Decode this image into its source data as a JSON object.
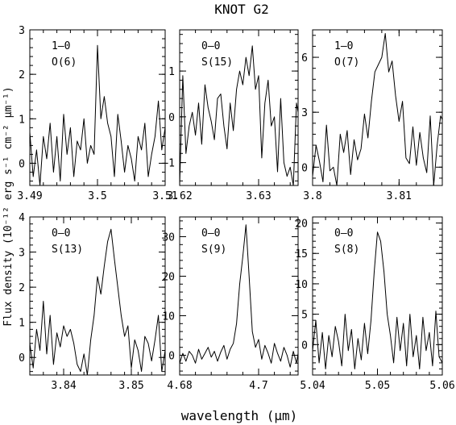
{
  "chart_data": {
    "type": "line",
    "title": "KNOT G2",
    "xlabel": "wavelength (μm)",
    "ylabel": "Flux density (10⁻¹² erg s⁻¹ cm⁻² μm⁻¹)",
    "panels": [
      {
        "label_line1": "1–0",
        "label_line2": "O(6)",
        "xlim": [
          3.49,
          3.51
        ],
        "ylim": [
          -0.5,
          3
        ],
        "xticks": [
          3.49,
          3.5,
          3.51
        ],
        "xtick_labels": [
          "3.49",
          "3.5",
          "3.51"
        ],
        "yticks": [
          0,
          1,
          2,
          3
        ],
        "ytick_labels": [
          "0",
          "1",
          "2",
          "3"
        ],
        "x": [
          3.49,
          3.4905,
          3.491,
          3.4915,
          3.492,
          3.4925,
          3.493,
          3.4935,
          3.494,
          3.4945,
          3.495,
          3.4955,
          3.496,
          3.4965,
          3.497,
          3.4975,
          3.498,
          3.4985,
          3.499,
          3.4995,
          3.5,
          3.5005,
          3.501,
          3.5015,
          3.502,
          3.5025,
          3.503,
          3.5035,
          3.504,
          3.5045,
          3.505,
          3.5055,
          3.506,
          3.5065,
          3.507,
          3.5075,
          3.508,
          3.5085,
          3.509,
          3.5095,
          3.51
        ],
        "y": [
          0.7,
          -0.3,
          0.3,
          -0.5,
          0.6,
          0.1,
          0.9,
          -0.2,
          0.6,
          -0.4,
          1.1,
          0.2,
          0.8,
          -0.3,
          0.5,
          0.3,
          1.0,
          0.0,
          0.4,
          0.2,
          2.65,
          1.0,
          1.5,
          0.9,
          0.6,
          -0.3,
          1.1,
          0.5,
          -0.2,
          0.4,
          0.1,
          -0.4,
          0.6,
          0.3,
          0.9,
          -0.3,
          0.2,
          0.6,
          1.4,
          0.3,
          0.8
        ]
      },
      {
        "label_line1": "0–0",
        "label_line2": "S(15)",
        "xlim": [
          3.62,
          3.635
        ],
        "ylim": [
          -1.5,
          1.9
        ],
        "xticks": [
          3.62,
          3.63
        ],
        "xtick_labels": [
          "3.62",
          "3.63"
        ],
        "yticks": [
          -1,
          0,
          1
        ],
        "ytick_labels": [
          "−1",
          "0",
          "1"
        ],
        "x": [
          3.62,
          3.6204,
          3.6208,
          3.6212,
          3.6216,
          3.622,
          3.6224,
          3.6228,
          3.6232,
          3.6236,
          3.624,
          3.6244,
          3.6248,
          3.6252,
          3.6256,
          3.626,
          3.6264,
          3.6268,
          3.6272,
          3.6276,
          3.628,
          3.6284,
          3.6288,
          3.6292,
          3.6296,
          3.63,
          3.6304,
          3.6308,
          3.6312,
          3.6316,
          3.632,
          3.6324,
          3.6328,
          3.6332,
          3.6336,
          3.634,
          3.6344,
          3.6348,
          3.635
        ],
        "y": [
          -1.5,
          0.9,
          -0.8,
          -0.2,
          0.1,
          -0.4,
          0.3,
          -0.6,
          0.7,
          0.2,
          -0.1,
          -0.5,
          0.4,
          0.5,
          -0.2,
          -0.7,
          0.3,
          -0.3,
          0.6,
          1.0,
          0.7,
          1.3,
          0.9,
          1.55,
          0.6,
          0.9,
          -0.9,
          0.3,
          0.8,
          -0.2,
          0.0,
          -1.2,
          0.4,
          -1.0,
          -1.3,
          -1.1,
          -1.5,
          0.3,
          0.1
        ]
      },
      {
        "label_line1": "1–0",
        "label_line2": "O(7)",
        "xlim": [
          3.8,
          3.815
        ],
        "ylim": [
          -1,
          7.5
        ],
        "xticks": [
          3.8,
          3.81
        ],
        "xtick_labels": [
          "3.8",
          "3.81"
        ],
        "yticks": [
          0,
          3,
          6
        ],
        "ytick_labels": [
          "0",
          "3",
          "6"
        ],
        "x": [
          3.8,
          3.8004,
          3.8008,
          3.8012,
          3.8016,
          3.802,
          3.8024,
          3.8028,
          3.8032,
          3.8036,
          3.804,
          3.8044,
          3.8048,
          3.8052,
          3.8056,
          3.806,
          3.8064,
          3.8068,
          3.8072,
          3.8076,
          3.808,
          3.8084,
          3.8088,
          3.8092,
          3.8096,
          3.81,
          3.8104,
          3.8108,
          3.8112,
          3.8116,
          3.812,
          3.8124,
          3.8128,
          3.8132,
          3.8136,
          3.814,
          3.8144,
          3.8148,
          3.815
        ],
        "y": [
          -0.5,
          1.2,
          0.3,
          -0.8,
          2.3,
          -0.2,
          0.0,
          -1.0,
          1.8,
          0.8,
          2.0,
          -0.4,
          1.5,
          0.4,
          1.0,
          2.9,
          1.6,
          3.6,
          5.2,
          5.6,
          6.0,
          7.3,
          5.2,
          5.8,
          3.9,
          2.5,
          3.6,
          0.5,
          0.2,
          2.2,
          0.1,
          1.9,
          0.5,
          -0.3,
          2.8,
          -1.0,
          1.2,
          2.8,
          2.6
        ]
      },
      {
        "label_line1": "0–0",
        "label_line2": "S(13)",
        "xlim": [
          3.835,
          3.855
        ],
        "ylim": [
          -0.5,
          4
        ],
        "xticks": [
          3.84,
          3.85
        ],
        "xtick_labels": [
          "3.84",
          "3.85"
        ],
        "yticks": [
          0,
          1,
          2,
          3,
          4
        ],
        "ytick_labels": [
          "0",
          "1",
          "2",
          "3",
          "4"
        ],
        "x": [
          3.835,
          3.8355,
          3.836,
          3.8365,
          3.837,
          3.8375,
          3.838,
          3.8385,
          3.839,
          3.8395,
          3.84,
          3.8405,
          3.841,
          3.8415,
          3.842,
          3.8425,
          3.843,
          3.8435,
          3.844,
          3.8445,
          3.845,
          3.8455,
          3.846,
          3.8465,
          3.847,
          3.8475,
          3.848,
          3.8485,
          3.849,
          3.8495,
          3.85,
          3.8505,
          3.851,
          3.8515,
          3.852,
          3.8525,
          3.853,
          3.8535,
          3.854,
          3.8545,
          3.855
        ],
        "y": [
          0.4,
          -0.3,
          0.8,
          0.2,
          1.6,
          0.1,
          1.2,
          -0.2,
          0.7,
          0.3,
          0.9,
          0.6,
          0.8,
          0.4,
          -0.2,
          -0.4,
          0.1,
          -0.5,
          0.5,
          1.2,
          2.3,
          1.8,
          2.6,
          3.3,
          3.65,
          2.8,
          2.0,
          1.2,
          0.6,
          0.9,
          -0.3,
          0.5,
          0.2,
          -0.4,
          0.6,
          0.4,
          -0.1,
          0.5,
          1.2,
          -0.4,
          0.2
        ]
      },
      {
        "label_line1": "0–0",
        "label_line2": "S(9)",
        "xlim": [
          4.68,
          4.71
        ],
        "ylim": [
          -5,
          35
        ],
        "xticks": [
          4.68,
          4.7
        ],
        "xtick_labels": [
          "4.68",
          "4.7"
        ],
        "yticks": [
          0,
          10,
          20,
          30
        ],
        "ytick_labels": [
          "0",
          "10",
          "20",
          "30"
        ],
        "x": [
          4.68,
          4.6808,
          4.6816,
          4.6824,
          4.6832,
          4.684,
          4.6848,
          4.6856,
          4.6864,
          4.6872,
          4.688,
          4.6888,
          4.6896,
          4.6904,
          4.6912,
          4.692,
          4.6928,
          4.6936,
          4.6944,
          4.6952,
          4.696,
          4.6968,
          4.6976,
          4.6984,
          4.6992,
          4.7,
          4.7008,
          4.7016,
          4.7024,
          4.7032,
          4.704,
          4.7048,
          4.7056,
          4.7064,
          4.7072,
          4.708,
          4.7088,
          4.7096,
          4.71
        ],
        "y": [
          -2.0,
          0.5,
          -1.5,
          1.0,
          0.0,
          -2.0,
          1.5,
          -1.0,
          0.5,
          2.0,
          -0.5,
          1.0,
          -1.5,
          0.8,
          2.5,
          -1.0,
          1.5,
          3.0,
          8.0,
          18.0,
          25.0,
          33.0,
          20.0,
          6.0,
          2.0,
          4.0,
          -1.0,
          2.5,
          0.5,
          -2.0,
          3.0,
          0.5,
          -1.5,
          2.0,
          0.0,
          -3.0,
          1.0,
          -2.0,
          0.5
        ]
      },
      {
        "label_line1": "0–0",
        "label_line2": "S(8)",
        "xlim": [
          5.04,
          5.06
        ],
        "ylim": [
          -5,
          21
        ],
        "xticks": [
          5.04,
          5.05,
          5.06
        ],
        "xtick_labels": [
          "5.04",
          "5.05",
          "5.06"
        ],
        "yticks": [
          0,
          5,
          10,
          15,
          20
        ],
        "ytick_labels": [
          "0",
          "5",
          "10",
          "15",
          "20"
        ],
        "x": [
          5.04,
          5.0405,
          5.041,
          5.0415,
          5.042,
          5.0425,
          5.043,
          5.0435,
          5.044,
          5.0445,
          5.045,
          5.0455,
          5.046,
          5.0465,
          5.047,
          5.0475,
          5.048,
          5.0485,
          5.049,
          5.0495,
          5.05,
          5.0505,
          5.051,
          5.0515,
          5.052,
          5.0525,
          5.053,
          5.0535,
          5.054,
          5.0545,
          5.055,
          5.0555,
          5.056,
          5.0565,
          5.057,
          5.0575,
          5.058,
          5.0585,
          5.059,
          5.0595,
          5.06
        ],
        "y": [
          -1.0,
          4.0,
          -3.0,
          2.0,
          -4.0,
          1.5,
          -2.0,
          3.0,
          0.5,
          -3.5,
          5.0,
          -1.0,
          2.5,
          -4.0,
          1.0,
          -2.5,
          3.5,
          -1.5,
          4.0,
          12.0,
          18.5,
          17.0,
          12.0,
          5.0,
          1.5,
          -3.0,
          4.5,
          -1.0,
          3.5,
          -3.5,
          5.0,
          -2.0,
          1.5,
          -4.0,
          4.5,
          -1.0,
          2.0,
          -3.5,
          5.5,
          -2.0,
          -3.0
        ]
      }
    ]
  }
}
